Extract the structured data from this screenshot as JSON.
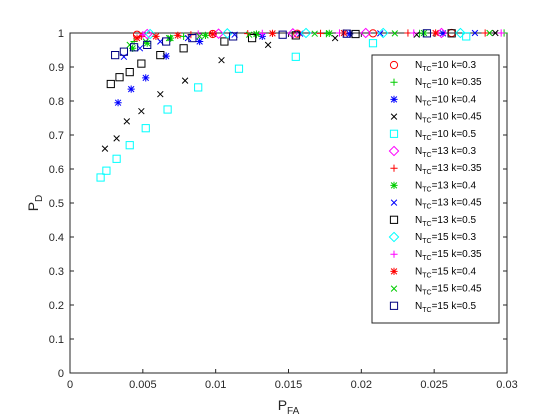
{
  "chart_data": {
    "type": "scatter",
    "title": "",
    "xlabel": {
      "main": "P",
      "sub": "FA"
    },
    "ylabel": {
      "main": "P",
      "sub": "D"
    },
    "xlim": [
      0,
      0.03
    ],
    "ylim": [
      0,
      1
    ],
    "x_ticks": [
      0,
      0.005,
      0.01,
      0.015,
      0.02,
      0.025,
      0.03
    ],
    "x_tick_labels": [
      "0",
      "0.005",
      "0.01",
      "0.015",
      "0.02",
      "0.025",
      "0.03"
    ],
    "y_ticks": [
      0,
      0.1,
      0.2,
      0.3,
      0.4,
      0.5,
      0.6,
      0.7,
      0.8,
      0.9,
      1
    ],
    "y_tick_labels": [
      "0",
      "0.1",
      "0.2",
      "0.3",
      "0.4",
      "0.5",
      "0.6",
      "0.7",
      "0.8",
      "0.9",
      "1"
    ],
    "grid": false,
    "legend_position": "top-right",
    "series": [
      {
        "name_pre": "N",
        "name_sub": "TC",
        "name_post": "=10 k=0.3",
        "marker": "circle",
        "color": "#ff0000",
        "points": [
          [
            0.0046,
            0.995
          ],
          [
            0.0098,
            0.997
          ],
          [
            0.0156,
            0.998
          ],
          [
            0.0208,
            0.999
          ],
          [
            0.0262,
            1.0
          ]
        ]
      },
      {
        "name_pre": "N",
        "name_sub": "TC",
        "name_post": "=10 k=0.35",
        "marker": "plus",
        "color": "#00cc00",
        "points": [
          [
            0.0044,
            0.975
          ],
          [
            0.0078,
            0.99
          ],
          [
            0.0128,
            0.995
          ],
          [
            0.0176,
            0.998
          ],
          [
            0.024,
            0.999
          ],
          [
            0.0298,
            1.0
          ]
        ]
      },
      {
        "name_pre": "N",
        "name_sub": "TC",
        "name_post": "=10 k=0.4",
        "marker": "asterisk",
        "color": "#0000ff",
        "points": [
          [
            0.0033,
            0.795
          ],
          [
            0.0042,
            0.835
          ],
          [
            0.0052,
            0.868
          ],
          [
            0.0066,
            0.932
          ],
          [
            0.0089,
            0.975
          ],
          [
            0.0132,
            0.99
          ],
          [
            0.0192,
            0.997
          ],
          [
            0.0256,
            0.999
          ]
        ]
      },
      {
        "name_pre": "N",
        "name_sub": "TC",
        "name_post": "=10 k=0.45",
        "marker": "cross",
        "color": "#000000",
        "points": [
          [
            0.0024,
            0.66
          ],
          [
            0.0032,
            0.69
          ],
          [
            0.0039,
            0.74
          ],
          [
            0.0049,
            0.77
          ],
          [
            0.0062,
            0.82
          ],
          [
            0.0079,
            0.86
          ],
          [
            0.0104,
            0.92
          ],
          [
            0.0136,
            0.965
          ],
          [
            0.0182,
            0.985
          ],
          [
            0.0238,
            0.995
          ],
          [
            0.0292,
            1.0
          ]
        ]
      },
      {
        "name_pre": "N",
        "name_sub": "TC",
        "name_post": "=10 k=0.5",
        "marker": "square",
        "color": "#00ffff",
        "points": [
          [
            0.0021,
            0.575
          ],
          [
            0.0025,
            0.595
          ],
          [
            0.0032,
            0.63
          ],
          [
            0.0041,
            0.67
          ],
          [
            0.0052,
            0.72
          ],
          [
            0.0067,
            0.775
          ],
          [
            0.0088,
            0.84
          ],
          [
            0.0116,
            0.895
          ],
          [
            0.0155,
            0.93
          ],
          [
            0.0208,
            0.97
          ],
          [
            0.0272,
            0.99
          ]
        ]
      },
      {
        "name_pre": "N",
        "name_sub": "TC",
        "name_post": "=13 k=0.3",
        "marker": "diamond",
        "color": "#ff00ff",
        "points": [
          [
            0.0053,
            0.997
          ],
          [
            0.0102,
            0.998
          ],
          [
            0.0153,
            0.999
          ],
          [
            0.0203,
            1.0
          ],
          [
            0.0255,
            1.0
          ]
        ]
      },
      {
        "name_pre": "N",
        "name_sub": "TC",
        "name_post": "=13 k=0.35",
        "marker": "plus",
        "color": "#ff0000",
        "points": [
          [
            0.0049,
            0.99
          ],
          [
            0.0083,
            0.995
          ],
          [
            0.0122,
            0.998
          ],
          [
            0.0172,
            0.999
          ],
          [
            0.0232,
            1.0
          ],
          [
            0.0285,
            1.0
          ]
        ]
      },
      {
        "name_pre": "N",
        "name_sub": "TC",
        "name_post": "=13 k=0.4",
        "marker": "asterisk",
        "color": "#00cc00",
        "points": [
          [
            0.0043,
            0.955
          ],
          [
            0.0053,
            0.97
          ],
          [
            0.0069,
            0.985
          ],
          [
            0.0093,
            0.993
          ],
          [
            0.0128,
            0.997
          ],
          [
            0.0178,
            0.999
          ],
          [
            0.0243,
            1.0
          ]
        ]
      },
      {
        "name_pre": "N",
        "name_sub": "TC",
        "name_post": "=13 k=0.45",
        "marker": "cross",
        "color": "#0000ff",
        "points": [
          [
            0.0037,
            0.93
          ],
          [
            0.0048,
            0.955
          ],
          [
            0.0062,
            0.975
          ],
          [
            0.0081,
            0.985
          ],
          [
            0.0113,
            0.995
          ],
          [
            0.0158,
            0.998
          ],
          [
            0.0213,
            0.999
          ],
          [
            0.0278,
            1.0
          ]
        ]
      },
      {
        "name_pre": "N",
        "name_sub": "TC",
        "name_post": "=13 k=0.5",
        "marker": "square",
        "color": "#000000",
        "points": [
          [
            0.0028,
            0.85
          ],
          [
            0.0034,
            0.87
          ],
          [
            0.0041,
            0.885
          ],
          [
            0.0049,
            0.91
          ],
          [
            0.0062,
            0.935
          ],
          [
            0.0078,
            0.955
          ],
          [
            0.0106,
            0.975
          ],
          [
            0.0125,
            0.985
          ],
          [
            0.0155,
            0.993
          ],
          [
            0.0196,
            0.997
          ],
          [
            0.0262,
            0.999
          ]
        ]
      },
      {
        "name_pre": "N",
        "name_sub": "TC",
        "name_post": "=15 k=0.3",
        "marker": "diamond",
        "color": "#00ffff",
        "points": [
          [
            0.0055,
            0.997
          ],
          [
            0.0108,
            0.999
          ],
          [
            0.0162,
            1.0
          ],
          [
            0.0215,
            1.0
          ],
          [
            0.0268,
            1.0
          ]
        ]
      },
      {
        "name_pre": "N",
        "name_sub": "TC",
        "name_post": "=15 k=0.35",
        "marker": "plus",
        "color": "#ff00ff",
        "points": [
          [
            0.005,
            0.995
          ],
          [
            0.0088,
            0.997
          ],
          [
            0.0132,
            0.999
          ],
          [
            0.0185,
            1.0
          ],
          [
            0.0236,
            1.0
          ],
          [
            0.0296,
            1.0
          ]
        ]
      },
      {
        "name_pre": "N",
        "name_sub": "TC",
        "name_post": "=15 k=0.4",
        "marker": "asterisk",
        "color": "#ff0000",
        "points": [
          [
            0.0046,
            0.985
          ],
          [
            0.0059,
            0.99
          ],
          [
            0.0074,
            0.993
          ],
          [
            0.0098,
            0.997
          ],
          [
            0.0139,
            0.999
          ],
          [
            0.0188,
            1.0
          ],
          [
            0.0251,
            1.0
          ]
        ]
      },
      {
        "name_pre": "N",
        "name_sub": "TC",
        "name_post": "=15 k=0.45",
        "marker": "cross",
        "color": "#00cc00",
        "points": [
          [
            0.0041,
            0.965
          ],
          [
            0.0052,
            0.975
          ],
          [
            0.0068,
            0.985
          ],
          [
            0.0089,
            0.99
          ],
          [
            0.0123,
            0.995
          ],
          [
            0.0168,
            0.998
          ],
          [
            0.0223,
            0.999
          ],
          [
            0.0288,
            1.0
          ]
        ]
      },
      {
        "name_pre": "N",
        "name_sub": "TC",
        "name_post": "=15 k=0.5",
        "marker": "square",
        "color": "#000080",
        "points": [
          [
            0.0031,
            0.935
          ],
          [
            0.0037,
            0.945
          ],
          [
            0.0044,
            0.958
          ],
          [
            0.0053,
            0.965
          ],
          [
            0.0066,
            0.975
          ],
          [
            0.0084,
            0.985
          ],
          [
            0.0112,
            0.99
          ],
          [
            0.0146,
            0.995
          ],
          [
            0.019,
            0.998
          ],
          [
            0.0245,
            0.999
          ]
        ]
      }
    ]
  }
}
